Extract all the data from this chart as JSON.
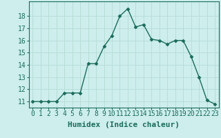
{
  "x": [
    0,
    1,
    2,
    3,
    4,
    5,
    6,
    7,
    8,
    9,
    10,
    11,
    12,
    13,
    14,
    15,
    16,
    17,
    18,
    19,
    20,
    21,
    22,
    23
  ],
  "y": [
    11.0,
    11.0,
    11.0,
    11.0,
    11.7,
    11.7,
    11.7,
    14.1,
    14.1,
    15.5,
    16.4,
    18.0,
    18.6,
    17.1,
    17.3,
    16.1,
    16.0,
    15.7,
    16.0,
    16.0,
    14.7,
    13.0,
    11.1,
    10.8
  ],
  "line_color": "#1a6b5a",
  "marker": "D",
  "marker_size": 2.5,
  "bg_color": "#cdeeed",
  "grid_color": "#b8ddd8",
  "xlabel": "Humidex (Indice chaleur)",
  "ylim": [
    10.5,
    19.2
  ],
  "xlim": [
    -0.5,
    23.5
  ],
  "yticks": [
    11,
    12,
    13,
    14,
    15,
    16,
    17,
    18
  ],
  "xticks": [
    0,
    1,
    2,
    3,
    4,
    5,
    6,
    7,
    8,
    9,
    10,
    11,
    12,
    13,
    14,
    15,
    16,
    17,
    18,
    19,
    20,
    21,
    22,
    23
  ],
  "xlabel_fontsize": 8,
  "tick_fontsize": 7
}
